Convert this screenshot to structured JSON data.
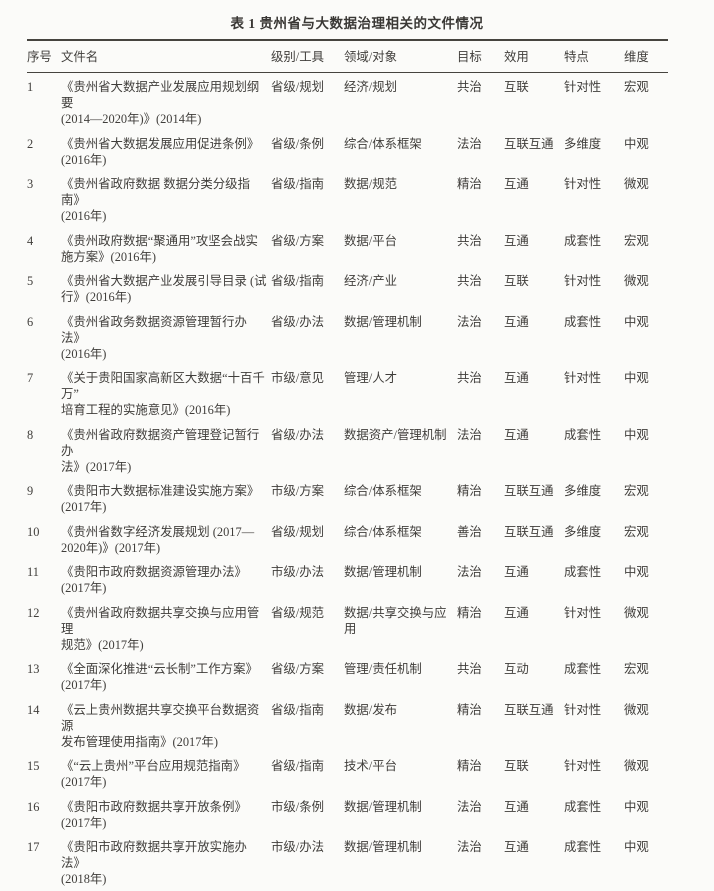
{
  "table": {
    "title": "表 1  贵州省与大数据治理相关的文件情况",
    "columns": {
      "no": "序号",
      "name": "文件名",
      "level": "级别/工具",
      "domain": "领域/对象",
      "goal": "目标",
      "effect": "效用",
      "feature": "特点",
      "dimension": "维度"
    },
    "rows": [
      {
        "no": "1",
        "name": "《贵州省大数据产业发展应用规划纲要\n(2014—2020年)》(2014年)",
        "level": "省级/规划",
        "domain": "经济/规划",
        "goal": "共治",
        "effect": "互联",
        "feature": "针对性",
        "dimension": "宏观"
      },
      {
        "no": "2",
        "name": "《贵州省大数据发展应用促进条例》\n(2016年)",
        "level": "省级/条例",
        "domain": "综合/体系框架",
        "goal": "法治",
        "effect": "互联互通",
        "feature": "多维度",
        "dimension": "中观"
      },
      {
        "no": "3",
        "name": "《贵州省政府数据 数据分类分级指南》\n(2016年)",
        "level": "省级/指南",
        "domain": "数据/规范",
        "goal": "精治",
        "effect": "互通",
        "feature": "针对性",
        "dimension": "微观"
      },
      {
        "no": "4",
        "name": "《贵州政府数据“聚通用”攻坚会战实\n施方案》(2016年)",
        "level": "省级/方案",
        "domain": "数据/平台",
        "goal": "共治",
        "effect": "互通",
        "feature": "成套性",
        "dimension": "宏观"
      },
      {
        "no": "5",
        "name": "《贵州省大数据产业发展引导目录 (试\n行》(2016年)",
        "level": "省级/指南",
        "domain": "经济/产业",
        "goal": "共治",
        "effect": "互联",
        "feature": "针对性",
        "dimension": "微观"
      },
      {
        "no": "6",
        "name": "《贵州省政务数据资源管理暂行办法》\n(2016年)",
        "level": "省级/办法",
        "domain": "数据/管理机制",
        "goal": "法治",
        "effect": "互通",
        "feature": "成套性",
        "dimension": "中观"
      },
      {
        "no": "7",
        "name": "《关于贵阳国家高新区大数据“十百千 万”\n培育工程的实施意见》(2016年)",
        "level": "市级/意见",
        "domain": "管理/人才",
        "goal": "共治",
        "effect": "互通",
        "feature": "针对性",
        "dimension": "中观"
      },
      {
        "no": "8",
        "name": "《贵州省政府数据资产管理登记暂行办\n法》(2017年)",
        "level": "省级/办法",
        "domain": "数据资产/管理机制",
        "goal": "法治",
        "effect": "互通",
        "feature": "成套性",
        "dimension": "中观"
      },
      {
        "no": "9",
        "name": "《贵阳市大数据标准建设实施方案》\n(2017年)",
        "level": "市级/方案",
        "domain": "综合/体系框架",
        "goal": "精治",
        "effect": "互联互通",
        "feature": "多维度",
        "dimension": "宏观"
      },
      {
        "no": "10",
        "name": "《贵州省数字经济发展规划 (2017—\n2020年)》(2017年)",
        "level": "省级/规划",
        "domain": "综合/体系框架",
        "goal": "善治",
        "effect": "互联互通",
        "feature": "多维度",
        "dimension": "宏观"
      },
      {
        "no": "11",
        "name": "《贵阳市政府数据资源管理办法》\n(2017年)",
        "level": "市级/办法",
        "domain": "数据/管理机制",
        "goal": "法治",
        "effect": "互通",
        "feature": "成套性",
        "dimension": "中观"
      },
      {
        "no": "12",
        "name": "《贵州省政府数据共享交换与应用管理\n规范》(2017年)",
        "level": "省级/规范",
        "domain": "数据/共享交换与应\n用",
        "goal": "精治",
        "effect": "互通",
        "feature": "针对性",
        "dimension": "微观"
      },
      {
        "no": "13",
        "name": "《全面深化推进“云长制”工作方案》\n(2017年)",
        "level": "省级/方案",
        "domain": "管理/责任机制",
        "goal": "共治",
        "effect": "互动",
        "feature": "成套性",
        "dimension": "宏观"
      },
      {
        "no": "14",
        "name": "《云上贵州数据共享交换平台数据资源\n发布管理使用指南》(2017年)",
        "level": "省级/指南",
        "domain": "数据/发布",
        "goal": "精治",
        "effect": "互联互通",
        "feature": "针对性",
        "dimension": "微观"
      },
      {
        "no": "15",
        "name": "《“云上贵州”平台应用规范指南》\n(2017年)",
        "level": "省级/指南",
        "domain": "技术/平台",
        "goal": "精治",
        "effect": "互联",
        "feature": "针对性",
        "dimension": "微观"
      },
      {
        "no": "16",
        "name": "《贵阳市政府数据共享开放条例》\n(2017年)",
        "level": "市级/条例",
        "domain": "数据/管理机制",
        "goal": "法治",
        "effect": "互通",
        "feature": "成套性",
        "dimension": "中观"
      },
      {
        "no": "17",
        "name": "《贵阳市政府数据共享开放实施办法》\n(2018年)",
        "level": "市级/办法",
        "domain": "数据/管理机制",
        "goal": "法治",
        "effect": "互通",
        "feature": "成套性",
        "dimension": "中观"
      }
    ]
  },
  "colors": {
    "background": "#fbfbf9",
    "text": "#403e3b",
    "rule": "#46443f"
  }
}
